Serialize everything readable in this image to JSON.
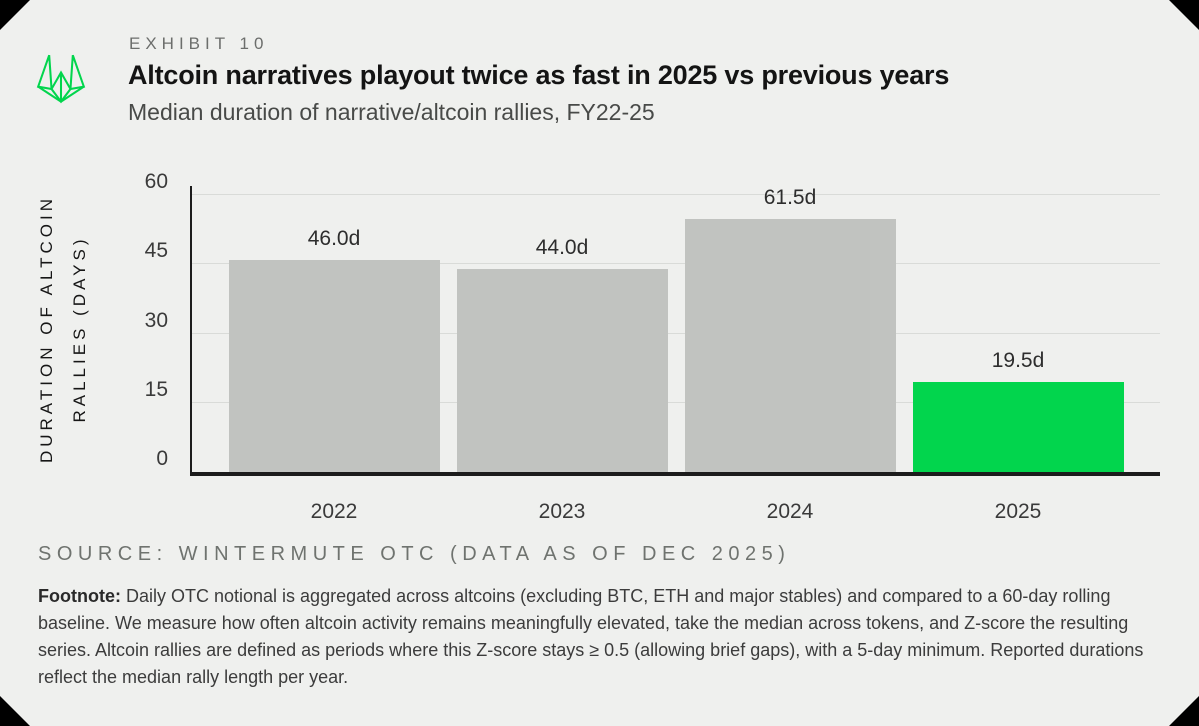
{
  "card": {
    "exhibit_label": "EXHIBIT 10",
    "title": "Altcoin narratives playout twice as fast in 2025 vs previous years",
    "subtitle": "Median duration of narrative/altcoin rallies, FY22-25",
    "source_line": "SOURCE: WINTERMUTE OTC (DATA AS OF DEC 2025)",
    "footnote_label": "Footnote:",
    "footnote_text": "Daily OTC notional is aggregated across altcoins (excluding BTC, ETH and major stables) and compared to a 60-day rolling baseline. We measure how often altcoin activity remains meaningfully elevated, take the median across tokens, and Z-score the resulting series. Altcoin rallies are defined as periods where this Z-score stays ≥ 0.5 (allowing brief gaps), with a 5-day minimum. Reported durations reflect the median rally length per year."
  },
  "icons": {
    "logo": "wintermute-logo"
  },
  "colors": {
    "background": "#eff0ee",
    "outside": "#000000",
    "bar_gray": "#c1c3c0",
    "bar_green": "#02d54d",
    "logo_green": "#02d54d",
    "gridline": "#d9dbd8",
    "axis": "#1c1c1c"
  },
  "chart_data": {
    "type": "bar",
    "title": "Altcoin narratives playout twice as fast in 2025 vs previous years",
    "subtitle": "Median duration of narrative/altcoin rallies, FY22-25",
    "categories": [
      "2022",
      "2023",
      "2024",
      "2025"
    ],
    "values": [
      46.0,
      44.0,
      61.5,
      19.5
    ],
    "value_labels": [
      "46.0d",
      "44.0d",
      "61.5d",
      "19.5d"
    ],
    "bar_colors": [
      "#c1c3c0",
      "#c1c3c0",
      "#c1c3c0",
      "#02d54d"
    ],
    "xlabel": "",
    "ylabel_line1": "DURATION OF ALTCOIN",
    "ylabel_line2": "RALLIES (DAYS)",
    "yticks": [
      0,
      15,
      30,
      45,
      60
    ],
    "ylim": [
      0,
      62
    ],
    "grid": true,
    "legend": false,
    "unit": "days"
  }
}
